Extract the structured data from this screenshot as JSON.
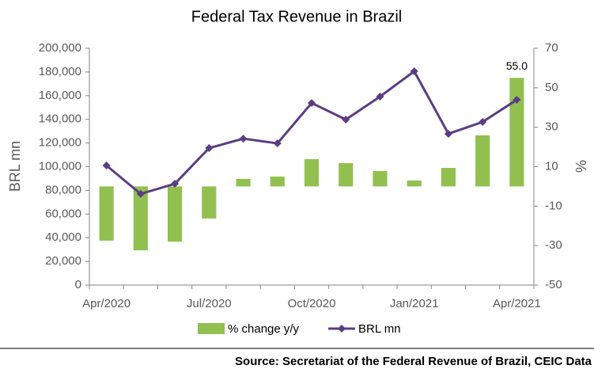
{
  "chart_data": {
    "type": "combo",
    "title": "Federal Tax Revenue in Brazil",
    "categories": [
      "Apr/2020",
      null,
      null,
      "Jul/2020",
      null,
      null,
      "Oct/2020",
      null,
      null,
      "Jan/2021",
      null,
      null,
      "Apr/2021"
    ],
    "y_label": "BRL mn",
    "y2_label": "%",
    "ylim": [
      0,
      200000
    ],
    "yticks": [
      0,
      {
        "value": 20000,
        "label": "20,000"
      },
      {
        "value": 40000,
        "label": "40,000"
      },
      {
        "value": 60000,
        "label": "60,000"
      },
      {
        "value": 80000,
        "label": "80,000"
      },
      {
        "value": 100000,
        "label": "100,000"
      },
      {
        "value": 120000,
        "label": "120,000"
      },
      {
        "value": 140000,
        "label": "140,000"
      },
      {
        "value": 160000,
        "label": "160,000"
      },
      {
        "value": 180000,
        "label": "180,000"
      },
      {
        "value": 200000,
        "label": "200,000"
      }
    ],
    "y2lim": [
      -50,
      70
    ],
    "y2ticks": [
      -50,
      -30,
      -10,
      10,
      30,
      50,
      70
    ],
    "series": [
      {
        "name": "% change y/y",
        "type": "bar",
        "axis": "y2",
        "color": "#92c050",
        "values": [
          -27.5,
          -32.4,
          -28,
          -16.3,
          3.8,
          5,
          13.8,
          11.8,
          7.8,
          3,
          9.4,
          25.9,
          55.0
        ],
        "value_labels": [
          null,
          null,
          null,
          null,
          null,
          null,
          null,
          null,
          null,
          null,
          null,
          null,
          "55.0"
        ]
      },
      {
        "name": "BRL mn",
        "type": "line",
        "color": "#5b3d82",
        "values": [
          101000,
          77000,
          85600,
          115700,
          123700,
          119700,
          153800,
          139800,
          159200,
          180600,
          127800,
          137800,
          156500
        ]
      }
    ],
    "grid": false,
    "source": "Source: Secretariat of the Federal Revenue of Brazil, CEIC Data"
  }
}
